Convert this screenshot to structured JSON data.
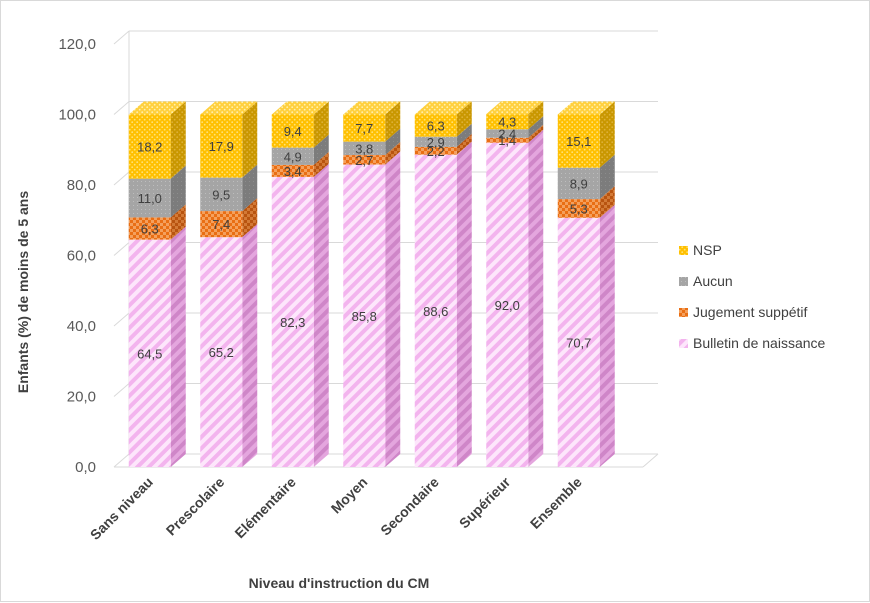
{
  "chart_data": {
    "type": "bar",
    "stacked": true,
    "three_d": true,
    "xlabel": "Niveau d'instruction du CM",
    "ylabel": "Enfants (%) de moins de 5 ans",
    "ylim": [
      0,
      120
    ],
    "yticks": [
      "0,0",
      "20,0",
      "40,0",
      "60,0",
      "80,0",
      "100,0",
      "120,0"
    ],
    "categories": [
      "Sans niveau",
      "Prescolaire",
      "Elémentaire",
      "Moyen",
      "Secondaire",
      "Supérieur",
      "Ensemble"
    ],
    "series": [
      {
        "name": "Bulletin de naissance",
        "values": [
          64.5,
          65.2,
          82.3,
          85.8,
          88.6,
          92.0,
          70.7
        ],
        "labels": [
          "64,5",
          "65,2",
          "82,3",
          "85,8",
          "88,6",
          "92,0",
          "70,7"
        ],
        "color": "#f5b8f0"
      },
      {
        "name": "Jugement suppétif",
        "values": [
          6.3,
          7.4,
          3.4,
          2.7,
          2.2,
          1.4,
          5.3
        ],
        "labels": [
          "6,3",
          "7,4",
          "3,4",
          "2,7",
          "2,2",
          "1,4",
          "5,3"
        ],
        "color": "#ed7d31"
      },
      {
        "name": "Aucun",
        "values": [
          11.0,
          9.5,
          4.9,
          3.8,
          2.9,
          2.4,
          8.9
        ],
        "labels": [
          "11,0",
          "9,5",
          "4,9",
          "3,8",
          "2,9",
          "2,4",
          "8,9"
        ],
        "color": "#a5a5a5"
      },
      {
        "name": "NSP",
        "values": [
          18.2,
          17.9,
          9.4,
          7.7,
          6.3,
          4.3,
          15.1
        ],
        "labels": [
          "18,2",
          "17,9",
          "9,4",
          "7,7",
          "6,3",
          "4,3",
          "15,1"
        ],
        "color": "#ffc000"
      }
    ],
    "legend_order": [
      "NSP",
      "Aucun",
      "Jugement suppétif",
      "Bulletin de naissance"
    ],
    "legend_position": "right",
    "grid": true
  }
}
